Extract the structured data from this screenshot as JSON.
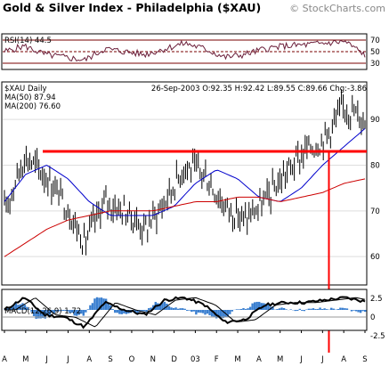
{
  "header": {
    "title": "Gold & Silver Index - Philadelphia ($XAU)",
    "watermark": "© StockCharts.com"
  },
  "rsi_panel": {
    "label": "RSI(14) 44.5",
    "ticks": [
      "70",
      "50",
      "30"
    ]
  },
  "price_panel": {
    "symbol_label": "$XAU Daily",
    "ma50_label": "MA(50) 87.94",
    "ma200_label": "MA(200) 76.60",
    "quote": "26-Sep-2003 O:92.35 H:92.42 L:89.55 C:89.66 Chg:-3.86",
    "ticks": [
      "90",
      "80",
      "70",
      "60"
    ]
  },
  "macd_panel": {
    "label": "MACD(12,26,9) 1.72",
    "ticks": [
      "2.5",
      "0",
      "-2.5"
    ]
  },
  "x_axis": {
    "labels": [
      "A",
      "M",
      "J",
      "J",
      "A",
      "S",
      "O",
      "N",
      "D",
      "03",
      "F",
      "M",
      "A",
      "M",
      "J",
      "J",
      "A",
      "S"
    ]
  },
  "colors": {
    "price_bars": "#000000",
    "ma50": "#0000cc",
    "ma200": "#cc0000",
    "annotation": "#ff0000",
    "rsi_line": "#6b1f3a",
    "rsi_guides": "#7a0000",
    "macd_hist": "#3a7fd0"
  },
  "chart_data": {
    "type": "line",
    "title": "Gold & Silver Index - Philadelphia ($XAU)",
    "period": "Daily, Apr 2002 - Sep 2003",
    "x_months": [
      "A",
      "M",
      "J",
      "J",
      "A",
      "S",
      "O",
      "N",
      "D",
      "03",
      "F",
      "M",
      "A",
      "M",
      "J",
      "J",
      "A",
      "S"
    ],
    "price": {
      "ylim": [
        54,
        98
      ],
      "monthly_closes": [
        70,
        82,
        78,
        72,
        63,
        72,
        70,
        66,
        72,
        80,
        78,
        71,
        68,
        72,
        78,
        83,
        86,
        93,
        89.66
      ]
    },
    "series": [
      {
        "name": "MA(50)",
        "values": [
          72,
          78,
          80,
          77,
          72,
          69,
          69,
          69,
          71,
          76,
          79,
          77,
          73,
          72,
          75,
          80,
          84,
          88
        ]
      },
      {
        "name": "MA(200)",
        "values": [
          60,
          63,
          66,
          68,
          69,
          70,
          70,
          70,
          71,
          72,
          72,
          73,
          73,
          72,
          73,
          74,
          76,
          77
        ]
      }
    ],
    "rsi": {
      "ylim": [
        20,
        80
      ],
      "values": [
        50,
        60,
        45,
        40,
        35,
        55,
        50,
        45,
        55,
        65,
        55,
        40,
        45,
        55,
        60,
        62,
        65,
        68,
        44.5
      ]
    },
    "macd": {
      "ylim": [
        -4,
        4
      ],
      "values": [
        0,
        2.5,
        -1,
        -1.5,
        -3.5,
        1.5,
        0,
        -1,
        2,
        2.5,
        1,
        -2.5,
        -2,
        1,
        1.5,
        1.5,
        2,
        2.5,
        1.72
      ]
    },
    "annotations": [
      {
        "type": "horizontal",
        "value": 83
      },
      {
        "type": "vertical",
        "month_index": 15.3
      }
    ]
  }
}
